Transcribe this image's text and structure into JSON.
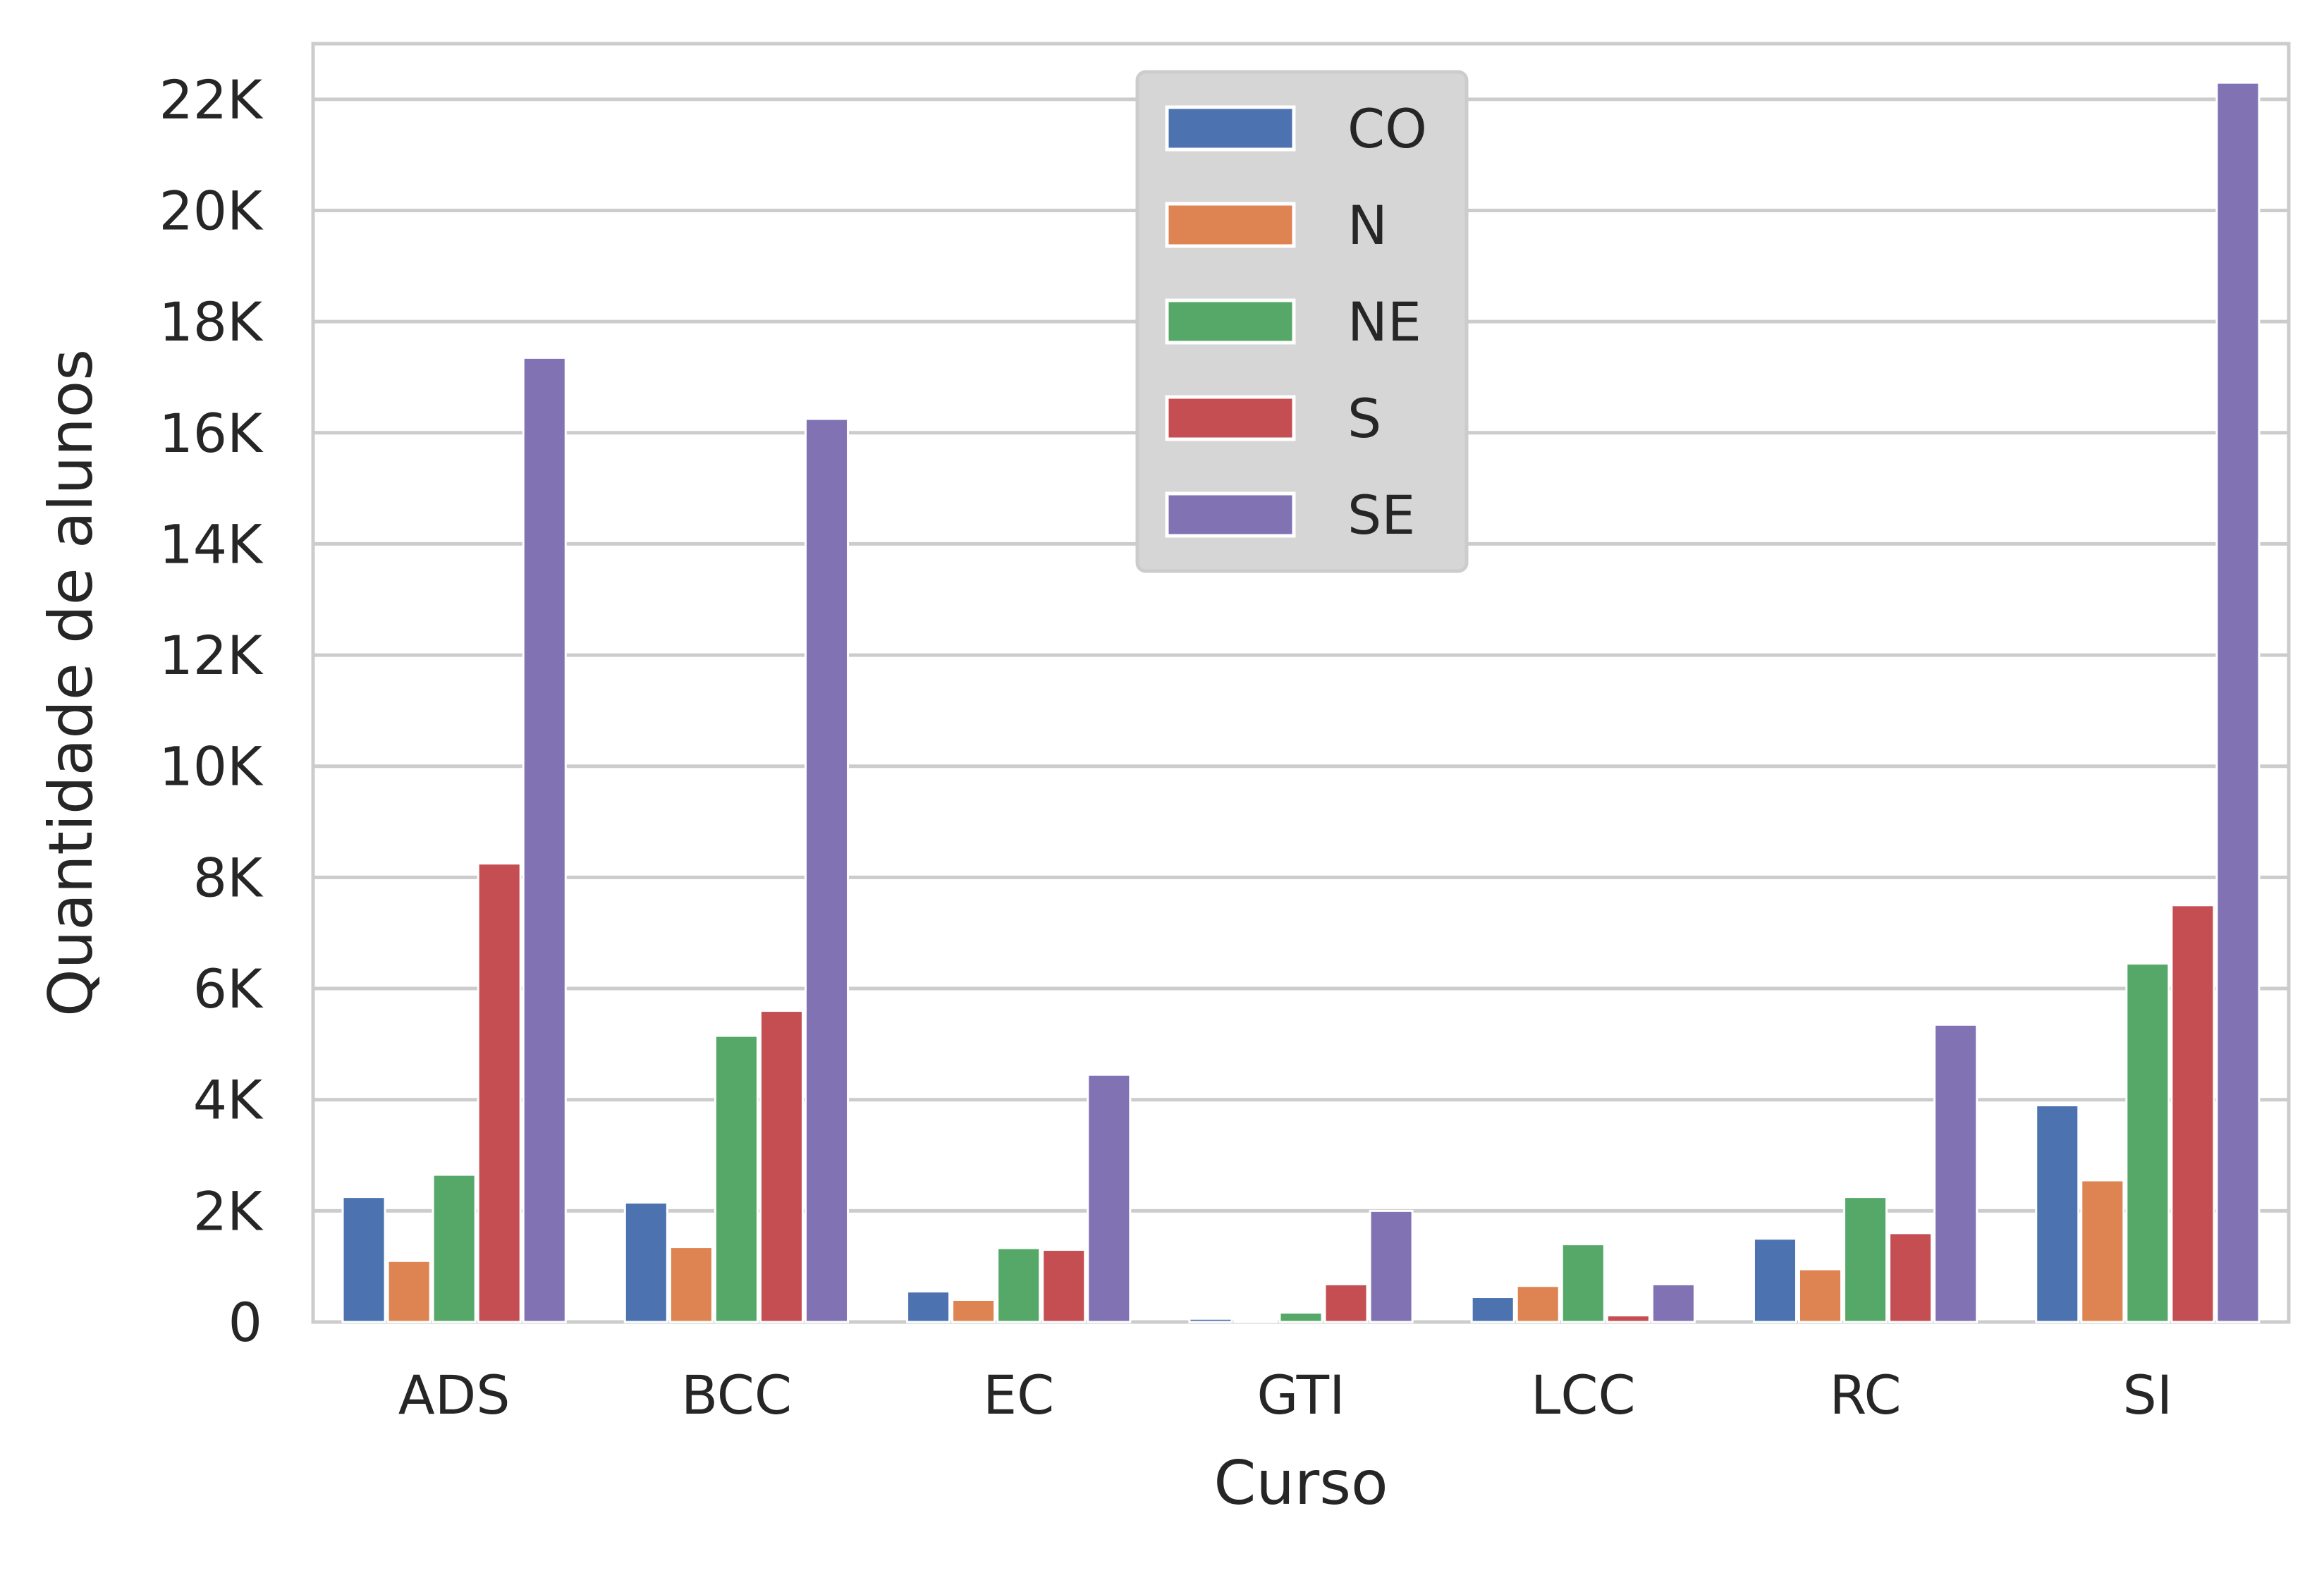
{
  "chart_data": {
    "type": "bar",
    "xlabel": "Curso",
    "ylabel": "Quantidade de alunos",
    "categories": [
      "ADS",
      "BCC",
      "EC",
      "GTI",
      "LCC",
      "RC",
      "SI"
    ],
    "ylim": [
      0,
      23000
    ],
    "yticks": [
      0,
      2000,
      4000,
      6000,
      8000,
      10000,
      12000,
      14000,
      16000,
      18000,
      20000,
      22000
    ],
    "ytick_labels": [
      "0",
      "2K",
      "4K",
      "6K",
      "8K",
      "10K",
      "12K",
      "14K",
      "16K",
      "18K",
      "20K",
      "22K"
    ],
    "grid": "horizontal",
    "legend_position": "top-center",
    "series": [
      {
        "name": "CO",
        "color": "#4c72b0",
        "values": [
          2250,
          2150,
          550,
          60,
          450,
          1500,
          3900
        ]
      },
      {
        "name": "N",
        "color": "#dd8452",
        "values": [
          1100,
          1350,
          400,
          30,
          650,
          950,
          2550
        ]
      },
      {
        "name": "NE",
        "color": "#55a868",
        "values": [
          2650,
          5150,
          1330,
          170,
          1400,
          2250,
          6450
        ]
      },
      {
        "name": "S",
        "color": "#c44e52",
        "values": [
          8250,
          5600,
          1300,
          680,
          120,
          1600,
          7500
        ]
      },
      {
        "name": "SE",
        "color": "#8172b3",
        "values": [
          17350,
          16250,
          4450,
          2000,
          680,
          5350,
          22300
        ]
      }
    ]
  }
}
